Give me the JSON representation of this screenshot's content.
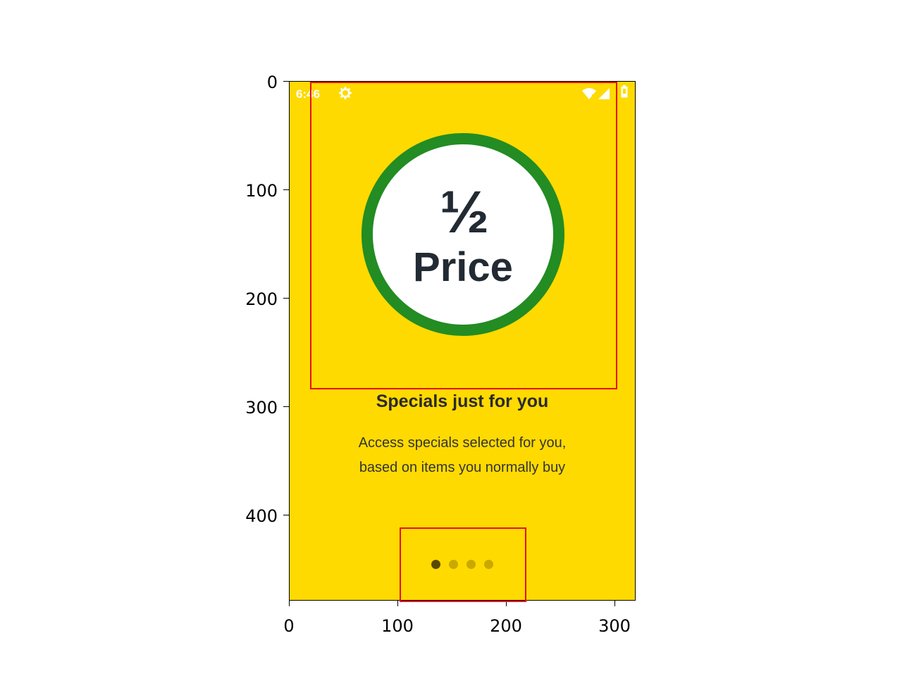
{
  "status_bar": {
    "time": "6:46",
    "icons": [
      "gear-icon",
      "wifi-icon",
      "signal-icon",
      "battery-icon"
    ]
  },
  "hero": {
    "fraction": "½",
    "label": "Price",
    "ring_color": "#238C23",
    "background_color": "#FFDA00"
  },
  "content": {
    "heading": "Specials just for you",
    "description_line1": "Access specials selected for you,",
    "description_line2": "based on items you normally buy"
  },
  "pager": {
    "total": 4,
    "active_index": 0
  },
  "axes": {
    "y_ticks": [
      "0",
      "100",
      "200",
      "300",
      "400"
    ],
    "x_ticks": [
      "0",
      "100",
      "200",
      "300"
    ]
  }
}
